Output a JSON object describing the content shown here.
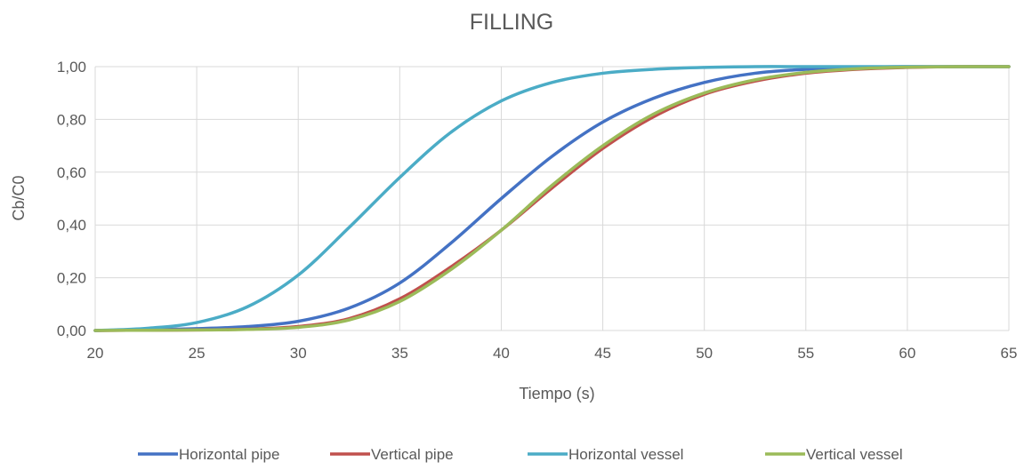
{
  "chart_data": {
    "type": "line",
    "title": "FILLING",
    "xlabel": "Tiempo (s)",
    "ylabel": "Cb/C0",
    "xlim": [
      20,
      65
    ],
    "ylim": [
      0,
      1
    ],
    "x_ticks": [
      "20",
      "25",
      "30",
      "35",
      "40",
      "45",
      "50",
      "55",
      "60",
      "65"
    ],
    "y_ticks": [
      "0,00",
      "0,20",
      "0,40",
      "0,60",
      "0,80",
      "1,00"
    ],
    "grid": true,
    "legend": "bottom",
    "x": [
      20,
      22.5,
      25,
      27.5,
      30,
      32.5,
      35,
      37.5,
      40,
      42.5,
      45,
      47.5,
      50,
      52.5,
      55,
      57.5,
      60,
      62.5,
      65
    ],
    "series": [
      {
        "name": "Horizontal pipe",
        "color": "#4472c4",
        "values": [
          0.0,
          0.003,
          0.007,
          0.015,
          0.035,
          0.085,
          0.18,
          0.33,
          0.5,
          0.66,
          0.79,
          0.88,
          0.94,
          0.975,
          0.99,
          0.997,
          1.0,
          1.0,
          1.0
        ]
      },
      {
        "name": "Vertical pipe",
        "color": "#c0504d",
        "values": [
          0.0,
          0.001,
          0.002,
          0.005,
          0.015,
          0.045,
          0.12,
          0.24,
          0.38,
          0.54,
          0.69,
          0.81,
          0.895,
          0.945,
          0.975,
          0.99,
          0.997,
          1.0,
          1.0
        ]
      },
      {
        "name": "Horizontal vessel",
        "color": "#4bacc6",
        "values": [
          0.0,
          0.008,
          0.03,
          0.09,
          0.21,
          0.39,
          0.58,
          0.75,
          0.87,
          0.94,
          0.975,
          0.99,
          0.997,
          1.0,
          1.0,
          1.0,
          1.0,
          1.0,
          1.0
        ]
      },
      {
        "name": "Vertical vessel",
        "color": "#9bbb59",
        "values": [
          0.0,
          0.001,
          0.002,
          0.004,
          0.012,
          0.04,
          0.11,
          0.23,
          0.38,
          0.55,
          0.7,
          0.82,
          0.9,
          0.95,
          0.978,
          0.992,
          0.998,
          1.0,
          1.0
        ]
      }
    ]
  }
}
